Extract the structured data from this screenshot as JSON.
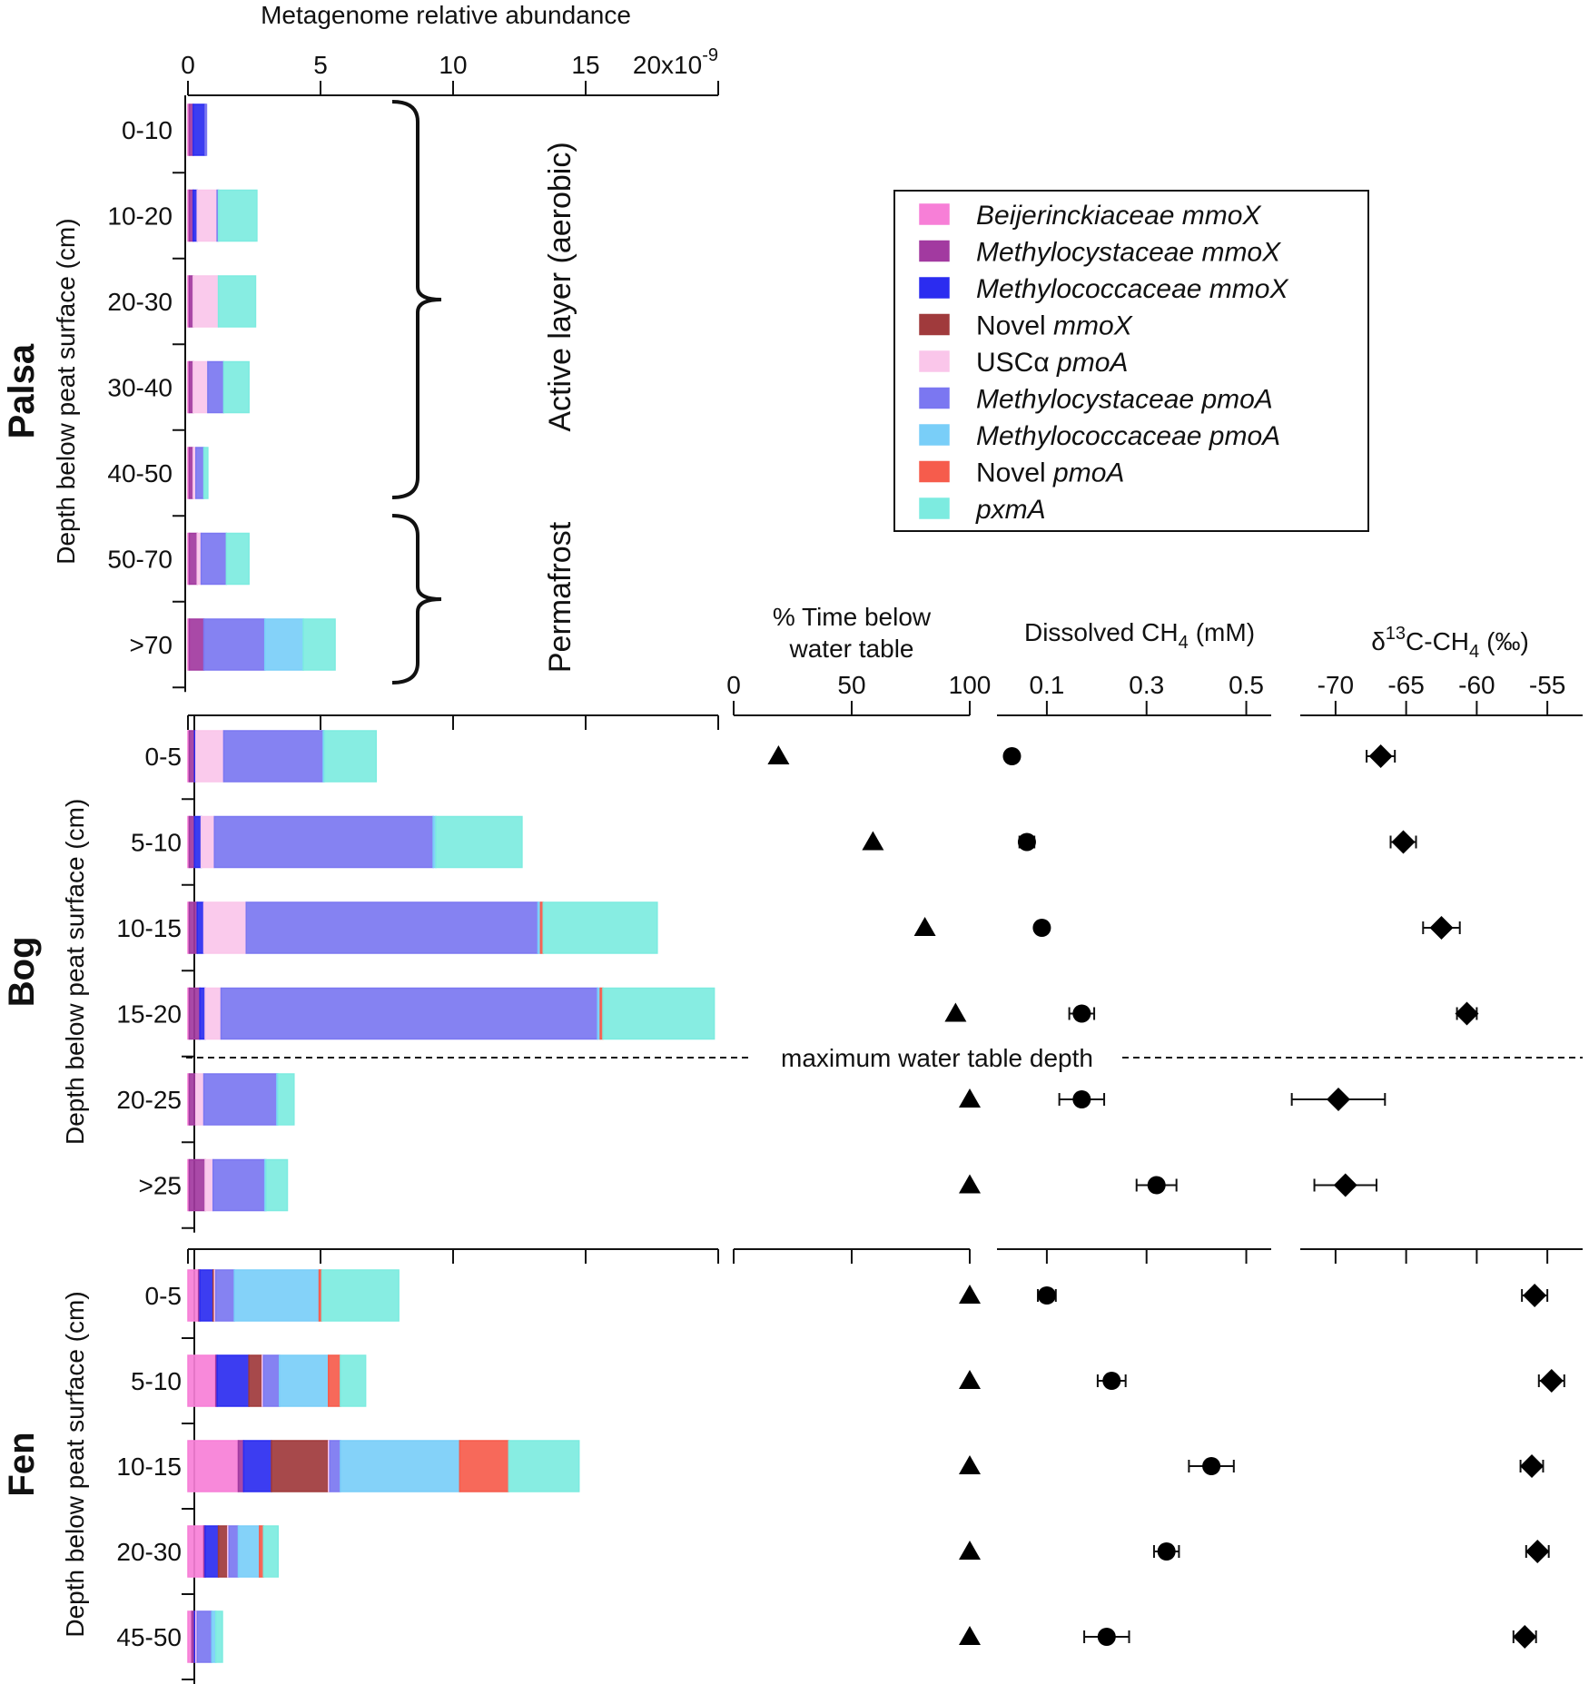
{
  "chart_data": {
    "type": "bar",
    "subtype": "stacked-horizontal-bar-with-dot-panels",
    "units": {
      "abundance_multiplier": "x10^-9"
    },
    "x_axis": {
      "title": "Metagenome relative abundance",
      "ticks": [
        "0",
        "5",
        "10",
        "15",
        "20x10"
      ],
      "tick_values": [
        0,
        5,
        10,
        15,
        20
      ],
      "exponent": "-9",
      "xlim": [
        0,
        20
      ]
    },
    "series": [
      {
        "name": "Beijerinckiaceae mmoX",
        "name_parts": [
          {
            "t": "Beijerinckiaceae mmoX",
            "i": true
          }
        ],
        "color": "#f77fd7"
      },
      {
        "name": "Methylocystaceae mmoX",
        "name_parts": [
          {
            "t": "Methylocystaceae mmoX",
            "i": true
          }
        ],
        "color": "#a23aa0"
      },
      {
        "name": "Methylococcaceae mmoX",
        "name_parts": [
          {
            "t": "Methylococcaceae mmoX",
            "i": true
          }
        ],
        "color": "#2b2cf0"
      },
      {
        "name": "Novel mmoX",
        "name_parts": [
          {
            "t": "Novel ",
            "i": false
          },
          {
            "t": "mmoX",
            "i": true
          }
        ],
        "color": "#a03a3c"
      },
      {
        "name": "USCα pmoA",
        "name_parts": [
          {
            "t": "USCα ",
            "i": false
          },
          {
            "t": "pmoA",
            "i": true
          }
        ],
        "color": "#fac6ea"
      },
      {
        "name": "Methylocystaceae pmoA",
        "name_parts": [
          {
            "t": "Methylocystaceae pmoA",
            "i": true
          }
        ],
        "color": "#7b77f1"
      },
      {
        "name": "Methylococcaceae pmoA",
        "name_parts": [
          {
            "t": "Methylococcaceae pmoA",
            "i": true
          }
        ],
        "color": "#79cef8"
      },
      {
        "name": "Novel pmoA",
        "name_parts": [
          {
            "t": "Novel ",
            "i": false
          },
          {
            "t": "pmoA",
            "i": true
          }
        ],
        "color": "#f65c4c"
      },
      {
        "name": "pxmA",
        "name_parts": [
          {
            "t": "pxmA",
            "i": true
          }
        ],
        "color": "#7debe0"
      }
    ],
    "sites": [
      {
        "site": "Palsa",
        "ylabel": "Depth below peat surface (cm)",
        "depths": [
          "0-10",
          "10-20",
          "20-30",
          "30-40",
          "40-50",
          "50-70",
          ">70"
        ],
        "values": [
          [
            0.05,
            0.15,
            0.45,
            0.0,
            0.0,
            0.05,
            0.0,
            0.0,
            0.0
          ],
          [
            0.05,
            0.15,
            0.15,
            0.0,
            0.75,
            0.05,
            0.0,
            0.0,
            1.45
          ],
          [
            0.05,
            0.15,
            0.0,
            0.0,
            0.95,
            0.0,
            0.0,
            0.0,
            1.4
          ],
          [
            0.05,
            0.15,
            0.0,
            0.0,
            0.55,
            0.6,
            0.0,
            0.0,
            0.95
          ],
          [
            0.05,
            0.15,
            0.0,
            0.0,
            0.1,
            0.3,
            0.0,
            0.0,
            0.15
          ],
          [
            0.05,
            0.3,
            0.0,
            0.0,
            0.15,
            0.95,
            0.0,
            0.0,
            0.85
          ],
          [
            0.05,
            0.55,
            0.0,
            0.0,
            0.0,
            2.3,
            1.45,
            0.0,
            1.2
          ]
        ],
        "annotations": [
          "Active layer (aerobic)",
          "Permafrost"
        ]
      },
      {
        "site": "Bog",
        "ylabel": "Depth below peat surface (cm)",
        "depths": [
          "0-5",
          "5-10",
          "10-15",
          "15-20",
          "20-25",
          ">25"
        ],
        "values": [
          [
            0.05,
            0.2,
            0.05,
            0.0,
            1.05,
            3.75,
            0.05,
            0.0,
            1.95
          ],
          [
            0.05,
            0.2,
            0.25,
            0.0,
            0.5,
            8.25,
            0.1,
            0.0,
            3.25
          ],
          [
            0.05,
            0.3,
            0.25,
            0.0,
            1.6,
            11.0,
            0.1,
            0.1,
            4.3
          ],
          [
            0.05,
            0.4,
            0.2,
            0.0,
            0.6,
            14.2,
            0.1,
            0.1,
            4.2
          ],
          [
            0.05,
            0.25,
            0.0,
            0.0,
            0.3,
            2.75,
            0.05,
            0.0,
            0.6
          ],
          [
            0.05,
            0.6,
            0.0,
            0.0,
            0.3,
            1.95,
            0.05,
            0.0,
            0.8
          ]
        ],
        "separator_label": "maximum water table depth",
        "time_below_water_table": [
          19,
          59,
          81,
          94,
          100,
          100
        ],
        "dissolved_ch4": {
          "values": [
            0.03,
            0.06,
            0.09,
            0.17,
            0.17,
            0.32
          ],
          "err": [
            0.0,
            0.015,
            0.008,
            0.025,
            0.045,
            0.04
          ]
        },
        "d13c_ch4": {
          "values": [
            -66.8,
            -65.2,
            -62.5,
            -60.7,
            -69.8,
            -69.3
          ],
          "err": [
            1.0,
            0.9,
            1.3,
            0.7,
            3.3,
            2.2
          ]
        }
      },
      {
        "site": "Fen",
        "ylabel": "Depth below peat surface (cm)",
        "depths": [
          "0-5",
          "5-10",
          "10-15",
          "20-30",
          "45-50"
        ],
        "values": [
          [
            0.4,
            0.05,
            0.5,
            0.05,
            0.05,
            0.7,
            3.2,
            0.1,
            2.9
          ],
          [
            1.05,
            0.05,
            1.2,
            0.5,
            0.05,
            0.6,
            1.85,
            0.45,
            0.95
          ],
          [
            1.9,
            0.2,
            1.05,
            2.15,
            0.05,
            0.4,
            4.5,
            1.85,
            2.65
          ],
          [
            0.6,
            0.05,
            0.5,
            0.35,
            0.05,
            0.35,
            0.8,
            0.15,
            0.55
          ],
          [
            0.15,
            0.1,
            0.05,
            0.0,
            0.05,
            0.55,
            0.15,
            0.0,
            0.25
          ]
        ],
        "time_below_water_table": [
          100,
          100,
          100,
          100,
          100
        ],
        "dissolved_ch4": {
          "values": [
            0.1,
            0.23,
            0.43,
            0.34,
            0.22
          ],
          "err": [
            0.018,
            0.028,
            0.045,
            0.025,
            0.045
          ]
        },
        "d13c_ch4": {
          "values": [
            -55.9,
            -54.7,
            -56.1,
            -55.7,
            -56.6
          ],
          "err": [
            0.9,
            0.9,
            0.8,
            0.8,
            0.8
          ]
        }
      }
    ],
    "panels": {
      "time": {
        "title_lines": [
          "% Time below",
          "water table"
        ],
        "ticks": [
          "0",
          "50",
          "100"
        ],
        "tick_values": [
          0,
          50,
          100
        ],
        "xlim": [
          0,
          100
        ]
      },
      "ch4": {
        "title": "Dissolved CH",
        "title_sub": "4",
        "title_unit": "(mM)",
        "ticks": [
          "0.1",
          "0.3",
          "0.5"
        ],
        "tick_values": [
          0.1,
          0.3,
          0.5
        ],
        "xlim": [
          0,
          0.55
        ]
      },
      "d13c": {
        "title_prefix": "δ",
        "title_sup": "13",
        "title_mid": "C-CH",
        "title_sub": "4",
        "title_unit": "(‰)",
        "ticks": [
          "-70",
          "-65",
          "-60",
          "-55"
        ],
        "tick_values": [
          -70,
          -65,
          -60,
          -55
        ],
        "xlim": [
          -72.5,
          -52.5
        ]
      }
    },
    "markers": {
      "time": "triangle",
      "ch4": "circle",
      "d13c": "diamond"
    }
  }
}
